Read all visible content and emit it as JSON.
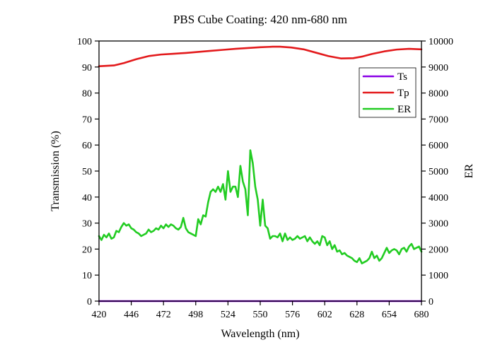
{
  "chart_data": {
    "type": "line",
    "title": "PBS Cube Coating: 420 nm-680 nm",
    "xlabel": "Wavelength (nm)",
    "ylabel": "Transmission (%)",
    "y2label": "ER",
    "xlim": [
      420,
      680
    ],
    "ylim": [
      0,
      100
    ],
    "y2lim": [
      0,
      10000
    ],
    "x_ticks": [
      420,
      446,
      472,
      498,
      524,
      550,
      576,
      602,
      628,
      654,
      680
    ],
    "y_ticks": [
      0,
      10,
      20,
      30,
      40,
      50,
      60,
      70,
      80,
      90,
      100
    ],
    "y2_ticks": [
      0,
      1000,
      2000,
      3000,
      4000,
      5000,
      6000,
      7000,
      8000,
      9000,
      10000
    ],
    "legend_position": "top-right",
    "grid": false,
    "series": [
      {
        "name": "Ts",
        "axis": "left",
        "color": "#8a00e6",
        "x": [
          420,
          680
        ],
        "y": [
          0,
          0
        ]
      },
      {
        "name": "Tp",
        "axis": "left",
        "color": "#e31a1c",
        "x": [
          420,
          432,
          440,
          450,
          460,
          470,
          480,
          490,
          500,
          510,
          520,
          530,
          540,
          550,
          560,
          566,
          575,
          585,
          595,
          605,
          615,
          625,
          632,
          640,
          650,
          660,
          670,
          680
        ],
        "y": [
          90.3,
          90.6,
          91.5,
          93.0,
          94.2,
          94.8,
          95.1,
          95.4,
          95.8,
          96.2,
          96.6,
          97.0,
          97.3,
          97.6,
          97.8,
          97.8,
          97.5,
          96.8,
          95.5,
          94.2,
          93.3,
          93.4,
          94.0,
          95.0,
          96.0,
          96.7,
          97.0,
          96.8
        ]
      },
      {
        "name": "ER",
        "axis": "right",
        "color": "#22cc22",
        "x": [
          420,
          422,
          424,
          426,
          428,
          430,
          432,
          434,
          436,
          438,
          440,
          442,
          444,
          446,
          448,
          450,
          452,
          454,
          456,
          458,
          460,
          462,
          464,
          466,
          468,
          470,
          472,
          474,
          476,
          478,
          480,
          482,
          484,
          486,
          488,
          490,
          492,
          494,
          496,
          498,
          500,
          502,
          504,
          506,
          508,
          510,
          512,
          514,
          516,
          518,
          520,
          522,
          524,
          526,
          528,
          530,
          532,
          534,
          536,
          538,
          540,
          542,
          544,
          546,
          548,
          550,
          552,
          554,
          556,
          558,
          560,
          562,
          564,
          566,
          568,
          570,
          572,
          574,
          576,
          578,
          580,
          582,
          584,
          586,
          588,
          590,
          592,
          594,
          596,
          598,
          600,
          602,
          604,
          606,
          608,
          610,
          612,
          614,
          616,
          618,
          620,
          622,
          624,
          626,
          628,
          630,
          632,
          634,
          636,
          638,
          640,
          642,
          644,
          646,
          648,
          650,
          652,
          654,
          656,
          658,
          660,
          662,
          664,
          666,
          668,
          670,
          672,
          674,
          676,
          678,
          680
        ],
        "y": [
          2500,
          2350,
          2550,
          2450,
          2600,
          2400,
          2450,
          2700,
          2650,
          2850,
          3000,
          2900,
          2950,
          2800,
          2750,
          2650,
          2600,
          2500,
          2550,
          2600,
          2750,
          2650,
          2700,
          2800,
          2750,
          2900,
          2800,
          2950,
          2850,
          2950,
          2900,
          2800,
          2750,
          2850,
          3200,
          2800,
          2650,
          2600,
          2550,
          2500,
          3150,
          2950,
          3300,
          3250,
          3800,
          4200,
          4300,
          4200,
          4400,
          4200,
          4500,
          3900,
          5000,
          4200,
          4400,
          4400,
          4000,
          5200,
          4600,
          4300,
          3300,
          5800,
          5300,
          4400,
          3900,
          2900,
          3900,
          2900,
          2800,
          2400,
          2500,
          2500,
          2450,
          2600,
          2300,
          2600,
          2350,
          2450,
          2350,
          2400,
          2500,
          2400,
          2450,
          2500,
          2300,
          2450,
          2300,
          2200,
          2300,
          2150,
          2500,
          2450,
          2150,
          2300,
          2000,
          2150,
          1900,
          1950,
          1800,
          1850,
          1750,
          1700,
          1650,
          1550,
          1500,
          1650,
          1450,
          1500,
          1550,
          1650,
          1900,
          1650,
          1750,
          1550,
          1650,
          1850,
          2050,
          1850,
          1950,
          2000,
          1950,
          1800,
          2000,
          2050,
          1900,
          2100,
          2200,
          2000,
          2050,
          2100,
          1900
        ]
      }
    ]
  }
}
